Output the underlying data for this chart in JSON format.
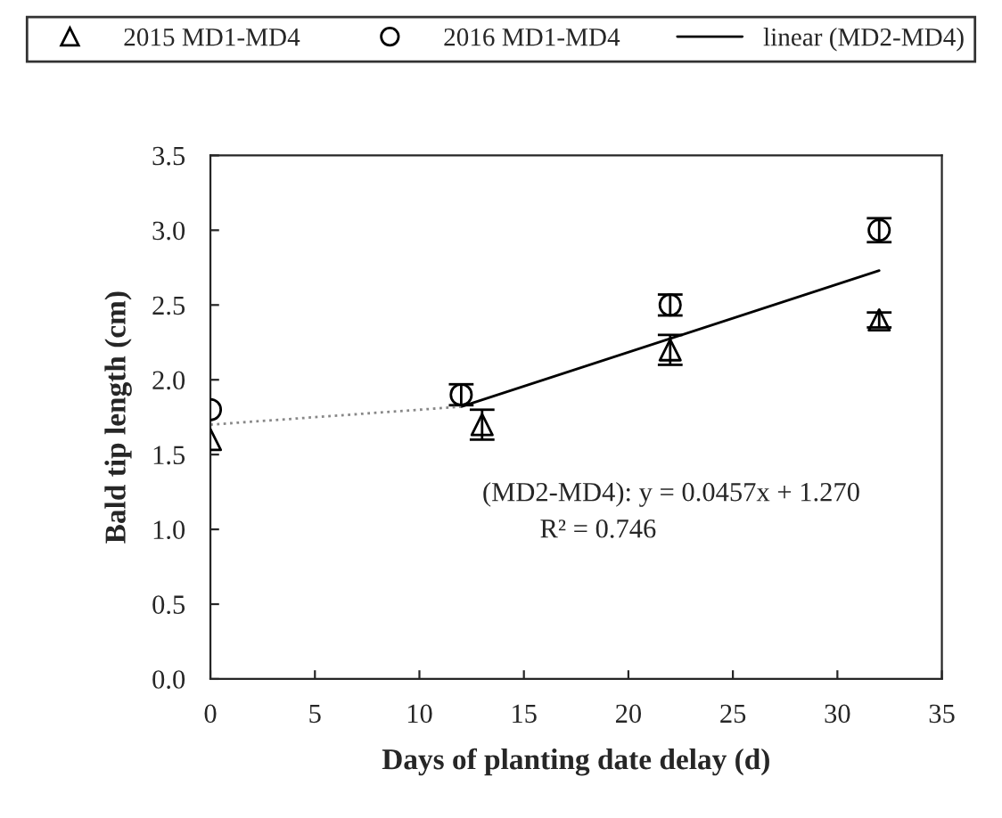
{
  "chart_data": {
    "type": "scatter",
    "xlabel": "Days of planting date delay (d)",
    "ylabel": "Bald tip length (cm)",
    "xlim": [
      0,
      35
    ],
    "xticks": [
      0,
      5,
      10,
      15,
      20,
      25,
      30,
      35
    ],
    "ylim": [
      0,
      3.5
    ],
    "yticks": [
      {
        "value": 0,
        "label": "0.0"
      },
      0.5,
      {
        "value": 1,
        "label": "1.0"
      },
      1.5,
      {
        "value": 2,
        "label": "2.0"
      },
      2.5,
      {
        "value": 3,
        "label": "3.0"
      },
      3.5
    ],
    "grid": false,
    "legend": "top",
    "series": [
      {
        "name": "2015 MD1-MD4",
        "marker": "triangle",
        "color": "#000000",
        "x": [
          0,
          13,
          22,
          32
        ],
        "values": [
          1.6,
          1.7,
          2.2,
          2.4
        ],
        "errors": [
          null,
          0.1,
          0.1,
          0.05
        ]
      },
      {
        "name": "2016 MD1-MD4",
        "marker": "circle",
        "color": "#000000",
        "x": [
          0,
          12,
          22,
          32
        ],
        "values": [
          1.8,
          1.9,
          2.5,
          3.0
        ],
        "errors": [
          null,
          0.07,
          0.07,
          0.08
        ]
      },
      {
        "name": "linear (MD2-MD4)",
        "type": "line",
        "marker": "none",
        "line_style": "solid",
        "color": "#000000",
        "x": [
          12,
          32
        ],
        "values": [
          1.82,
          2.73
        ]
      },
      {
        "type": "line",
        "marker": "none",
        "line_style": "dotted",
        "color": "#888888",
        "x": [
          0,
          12
        ],
        "values": [
          1.7,
          1.82
        ]
      }
    ],
    "annotations": [
      "(MD2-MD4): y = 0.0457x + 1.270",
      "R² = 0.746"
    ]
  }
}
